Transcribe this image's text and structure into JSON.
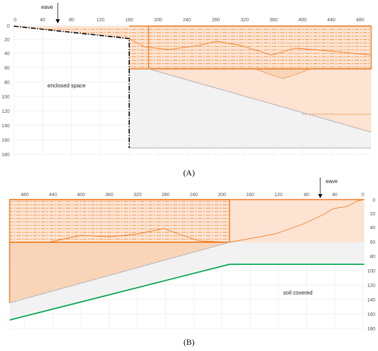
{
  "panel_a": {
    "x_ticks": [
      "0",
      "40",
      "80",
      "120",
      "160",
      "200",
      "240",
      "280",
      "320",
      "360",
      "400",
      "440",
      "480"
    ],
    "y_ticks": [
      "0",
      "20",
      "40",
      "60",
      "80",
      "100",
      "120",
      "140",
      "160",
      "180"
    ],
    "eave_label": "eave",
    "space_label": "enclosed space",
    "caption": "(A)"
  },
  "panel_b": {
    "x_ticks": [
      "480",
      "440",
      "400",
      "360",
      "320",
      "280",
      "240",
      "200",
      "160",
      "120",
      "80",
      "40",
      "0"
    ],
    "y_ticks": [
      "0",
      "20",
      "40",
      "60",
      "80",
      "100",
      "120",
      "140",
      "160",
      "180"
    ],
    "eave_label": "eave",
    "soil_label": "soil covered",
    "caption": "(B)"
  },
  "colors": {
    "orange": "#ee7d22",
    "orange_fill": "#fde3d1",
    "grey_fill": "#f2f2f2",
    "grid": "#dddddd",
    "green": "#00a650"
  }
}
